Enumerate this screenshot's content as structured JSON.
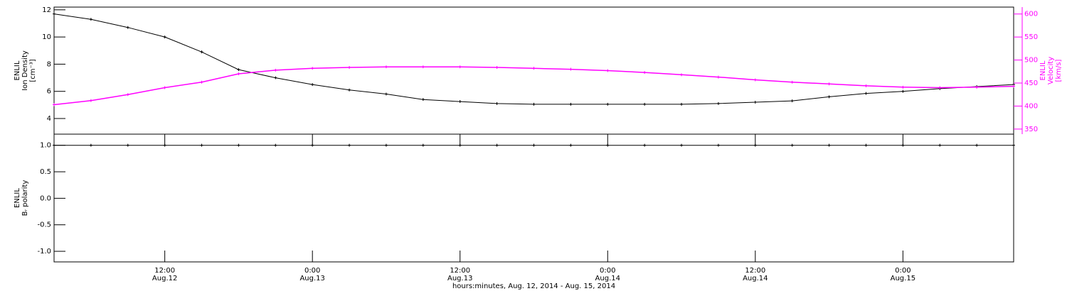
{
  "chart_data": [
    {
      "type": "line",
      "y_label": [
        "ENLIL",
        "Ion Density",
        "[cm⁻³]"
      ],
      "y2_label": [
        "ENLIL",
        "Velocity",
        "[km/s]"
      ],
      "x": [
        3,
        6,
        9,
        12,
        15,
        18,
        21,
        24,
        27,
        30,
        33,
        36,
        39,
        42,
        45,
        48,
        51,
        54,
        57,
        60,
        63,
        66,
        69,
        72,
        75,
        78,
        81
      ],
      "series": [
        {
          "name": "Ion Density",
          "color": "#000000",
          "values": [
            11.7,
            11.3,
            10.7,
            10.0,
            8.9,
            7.6,
            7.0,
            6.5,
            6.1,
            5.8,
            5.4,
            5.25,
            5.1,
            5.05,
            5.05,
            5.05,
            5.05,
            5.05,
            5.1,
            5.2,
            5.3,
            5.6,
            5.85,
            6.0,
            6.2,
            6.35,
            6.5
          ]
        },
        {
          "name": "Velocity",
          "color": "#ff00ff",
          "axis": "y2",
          "values": [
            403,
            412,
            425,
            440,
            452,
            470,
            478,
            482,
            484,
            485,
            485,
            485,
            484,
            482,
            480,
            477,
            473,
            468,
            463,
            457,
            452,
            448,
            444,
            441,
            440,
            441,
            443
          ]
        }
      ],
      "xlim": [
        3,
        81
      ],
      "ylim": [
        2.85,
        12.2
      ],
      "yticks": [
        4,
        6,
        8,
        10,
        12
      ],
      "y2lim": [
        339,
        615
      ],
      "y2ticks": [
        350,
        400,
        450,
        500,
        550,
        600
      ]
    },
    {
      "type": "line",
      "y_label": [
        "ENLIL",
        "Bᵣ polarity"
      ],
      "x": [
        3,
        6,
        9,
        12,
        15,
        18,
        21,
        24,
        27,
        30,
        33,
        36,
        39,
        42,
        45,
        48,
        51,
        54,
        57,
        60,
        63,
        66,
        69,
        72,
        75,
        78,
        81
      ],
      "series": [
        {
          "name": "Br polarity",
          "color": "#000000",
          "values": [
            1,
            1,
            1,
            1,
            1,
            1,
            1,
            1,
            1,
            1,
            1,
            1,
            1,
            1,
            1,
            1,
            1,
            1,
            1,
            1,
            1,
            1,
            1,
            1,
            1,
            1,
            1
          ]
        }
      ],
      "xlim": [
        3,
        81
      ],
      "ylim": [
        -1.2,
        1.21
      ],
      "yticks": [
        {
          "value": -1,
          "label": "-1.0"
        },
        {
          "value": -0.5,
          "label": "-0.5"
        },
        {
          "value": 0,
          "label": "0.0"
        },
        {
          "value": 0.5,
          "label": "0.5"
        },
        {
          "value": 1,
          "label": "1.0"
        }
      ],
      "xticks": [
        {
          "value": 12,
          "label": "12:00"
        },
        {
          "value": 24,
          "label": "0:00"
        },
        {
          "value": 36,
          "label": "12:00"
        },
        {
          "value": 48,
          "label": "0:00"
        },
        {
          "value": 60,
          "label": "12:00"
        },
        {
          "value": 72,
          "label": "0:00"
        }
      ],
      "xtick_dates": [
        "Aug.12",
        "Aug.13",
        "Aug.13",
        "Aug.14",
        "Aug.14",
        "Aug.15"
      ],
      "x_label": "hours:minutes, Aug. 12, 2014 - Aug. 15, 2014"
    }
  ]
}
